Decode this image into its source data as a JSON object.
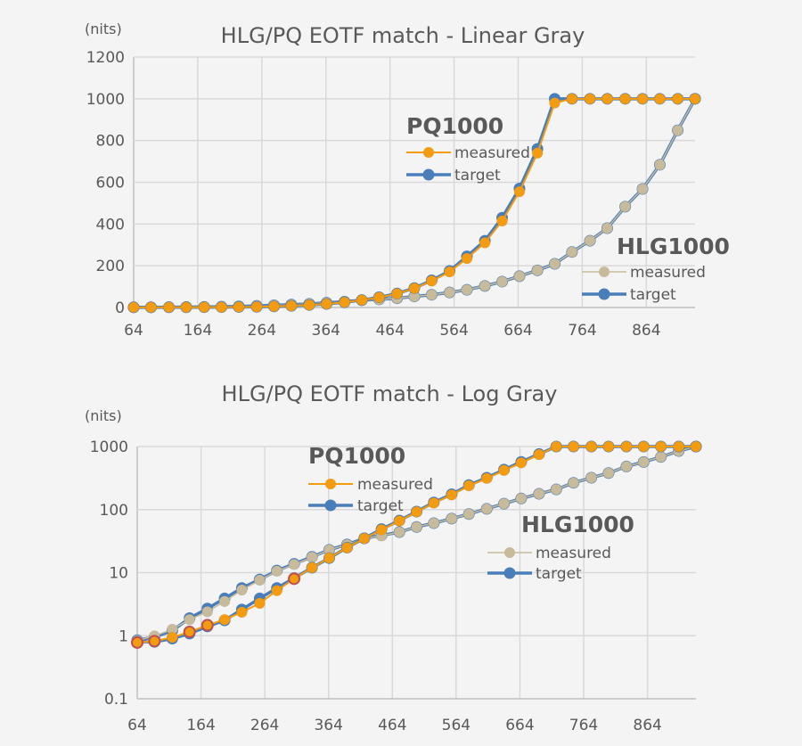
{
  "colors": {
    "pq_measured": "#f39c12",
    "target": "#4a7ebb",
    "hlg_measured": "#c8bb9c",
    "highlight_edge": "#c0504d",
    "grid": "#d9d9d9",
    "text": "#595959",
    "background": "#f4f4f4"
  },
  "chart_data": [
    {
      "type": "line",
      "title": "HLG/PQ EOTF match - Linear Gray",
      "ylabel": "(nits)",
      "xlabel": "",
      "y_scale": "linear",
      "xlim": [
        64,
        940
      ],
      "ylim": [
        0,
        1200
      ],
      "grid": true,
      "x_ticks": [
        "64",
        "164",
        "264",
        "364",
        "464",
        "564",
        "664",
        "764",
        "864"
      ],
      "y_ticks": [
        "0",
        "200",
        "400",
        "600",
        "800",
        "1000",
        "1200"
      ],
      "x": [
        64,
        91,
        119,
        146,
        174,
        201,
        228,
        256,
        283,
        310,
        338,
        365,
        393,
        420,
        447,
        475,
        502,
        529,
        557,
        584,
        612,
        639,
        666,
        694,
        721,
        748,
        776,
        803,
        831,
        858,
        885,
        913,
        940
      ],
      "legend_groups": [
        {
          "title": "PQ1000",
          "placement": "center",
          "measured_label": "measured",
          "target_label": "target"
        },
        {
          "title": "HLG1000",
          "placement": "right",
          "measured_label": "measured",
          "target_label": "target"
        }
      ],
      "series": [
        {
          "name": "PQ1000 measured",
          "values": [
            0.8,
            0.8,
            0.9,
            1.2,
            1.5,
            1.8,
            2.4,
            3.3,
            5.2,
            8,
            12,
            17,
            25,
            35,
            48,
            66,
            92,
            127,
            171,
            235,
            310,
            415,
            555,
            740,
            980,
            1000,
            1000,
            1000,
            1000,
            1000,
            1000,
            1000,
            1000
          ]
        },
        {
          "name": "PQ1000 target",
          "values": [
            0.8,
            0.8,
            0.9,
            1.1,
            1.45,
            1.75,
            2.3,
            3.1,
            5,
            8,
            12,
            17,
            25,
            35,
            49,
            67,
            93,
            130,
            175,
            245,
            320,
            430,
            570,
            760,
            1000,
            1000,
            1000,
            1000,
            1000,
            1000,
            1000,
            1000,
            1000
          ]
        },
        {
          "name": "HLG1000 measured",
          "values": [
            0.84,
            0.99,
            1.26,
            1.8,
            2.4,
            3.5,
            5.3,
            7.6,
            10.6,
            13.5,
            17.6,
            23,
            27.8,
            34.9,
            38.5,
            44,
            53,
            61,
            72,
            85,
            103,
            124,
            150,
            178,
            209,
            266,
            320,
            380,
            483,
            568,
            684,
            849,
            1000
          ]
        },
        {
          "name": "HLG1000 target",
          "values": [
            0.85,
            1.0,
            1.35,
            2.0,
            2.7,
            3.9,
            5.6,
            7.8,
            10.8,
            13.8,
            17.8,
            23,
            28,
            35,
            39,
            44,
            53,
            61,
            72,
            85,
            103,
            124,
            150,
            178,
            209,
            266,
            320,
            380,
            483,
            568,
            684,
            849,
            1000
          ]
        }
      ]
    },
    {
      "type": "line",
      "title": "HLG/PQ EOTF match - Log Gray",
      "ylabel": "(nits)",
      "xlabel": "",
      "y_scale": "log",
      "xlim": [
        64,
        940
      ],
      "ylim": [
        0.1,
        1000
      ],
      "grid": true,
      "x_ticks": [
        "64",
        "164",
        "264",
        "364",
        "464",
        "564",
        "664",
        "764",
        "864"
      ],
      "y_ticks": [
        "0.1",
        "1",
        "10",
        "100",
        "1000"
      ],
      "x": [
        64,
        91,
        119,
        146,
        174,
        201,
        228,
        256,
        283,
        310,
        338,
        365,
        393,
        420,
        447,
        475,
        502,
        529,
        557,
        584,
        612,
        639,
        666,
        694,
        721,
        748,
        776,
        803,
        831,
        858,
        885,
        913,
        940
      ],
      "highlighted_pq_measured_indices": [
        0,
        1,
        3,
        4,
        9
      ],
      "legend_groups": [
        {
          "title": "PQ1000",
          "placement": "center-left",
          "measured_label": "measured",
          "target_label": "target"
        },
        {
          "title": "HLG1000",
          "placement": "center-right",
          "measured_label": "measured",
          "target_label": "target"
        }
      ],
      "series": [
        {
          "name": "PQ1000 measured",
          "values": [
            0.78,
            0.82,
            0.94,
            1.15,
            1.47,
            1.8,
            2.36,
            3.27,
            5.2,
            8,
            12,
            17.1,
            24.9,
            34.9,
            47.9,
            66,
            92,
            127,
            171,
            239,
            313,
            419,
            551,
            747,
            1000,
            1000,
            1000,
            1000,
            1000,
            1000,
            1000,
            1000,
            1000
          ]
        },
        {
          "name": "PQ1000 target",
          "values": [
            0.8,
            0.8,
            0.9,
            1.08,
            1.4,
            1.75,
            2.6,
            3.9,
            5.7,
            8.2,
            12,
            17,
            25,
            35,
            49,
            67,
            93,
            130,
            175,
            245,
            320,
            430,
            570,
            760,
            1000,
            1000,
            1000,
            1000,
            1000,
            1000,
            1000,
            1000,
            1000
          ]
        },
        {
          "name": "HLG1000 measured",
          "values": [
            0.84,
            0.99,
            1.26,
            1.8,
            2.4,
            3.5,
            5.3,
            7.6,
            10.6,
            13.5,
            17.6,
            23,
            27.8,
            34.9,
            38.5,
            44,
            53,
            61,
            72,
            85,
            103,
            124,
            150,
            178,
            209,
            266,
            320,
            380,
            483,
            568,
            684,
            849,
            1000
          ]
        },
        {
          "name": "HLG1000 target",
          "values": [
            0.85,
            0.95,
            1.2,
            1.9,
            2.7,
            3.9,
            5.7,
            7.8,
            10.8,
            13.8,
            17.8,
            23,
            28,
            35,
            39,
            44,
            53,
            61,
            72,
            85,
            103,
            124,
            150,
            178,
            209,
            266,
            320,
            380,
            483,
            568,
            684,
            849,
            1000
          ]
        }
      ]
    }
  ]
}
